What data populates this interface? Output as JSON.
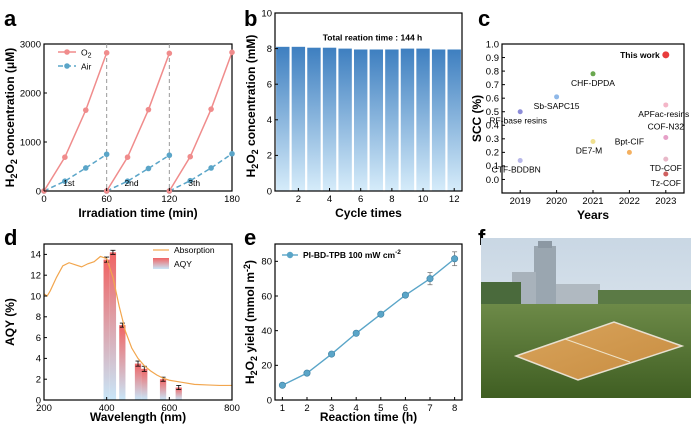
{
  "panels": {
    "a": "a",
    "b": "b",
    "c": "c",
    "d": "d",
    "e": "e",
    "f": "f"
  },
  "colors": {
    "o2": "#f08c8c",
    "air": "#5aa5c8",
    "bar_top": "#3e7fc0",
    "bar_bottom": "#d6ecfa",
    "absorption": "#f2a64e",
    "aqy_top": "#f06464",
    "aqy_bottom": "#c8e6f8",
    "scc_this_work": "#e83c3c"
  },
  "photo_description_label": "",
  "chart_data": [
    {
      "panel": "a",
      "type": "line",
      "xlabel": "Irradiation time (min)",
      "ylabel_parts": [
        "H",
        "2",
        "O",
        "2",
        " concentration (μM)"
      ],
      "xlim": [
        0,
        180
      ],
      "ylim": [
        0,
        3000
      ],
      "xticks": [
        0,
        60,
        120,
        180
      ],
      "yticks": [
        0,
        1000,
        2000,
        3000
      ],
      "cycle_dividers": [
        60,
        120
      ],
      "cycle_labels": [
        {
          "x": 20,
          "text": "1st"
        },
        {
          "x": 80,
          "text": "2nd"
        },
        {
          "x": 140,
          "text": "3th"
        }
      ],
      "legend_o2": [
        "O",
        "2"
      ],
      "series": [
        {
          "name": "Air",
          "key": "air",
          "dash": true,
          "segments": [
            [
              [
                0,
                0
              ],
              [
                20,
                200
              ],
              [
                40,
                470
              ],
              [
                60,
                750
              ]
            ],
            [
              [
                60,
                0
              ],
              [
                80,
                200
              ],
              [
                100,
                460
              ],
              [
                120,
                730
              ]
            ],
            [
              [
                120,
                0
              ],
              [
                140,
                210
              ],
              [
                160,
                470
              ],
              [
                180,
                760
              ]
            ]
          ]
        },
        {
          "name": "O2",
          "key": "o2",
          "dash": false,
          "segments": [
            [
              [
                0,
                0
              ],
              [
                20,
                690
              ],
              [
                40,
                1650
              ],
              [
                60,
                2820
              ]
            ],
            [
              [
                60,
                0
              ],
              [
                80,
                690
              ],
              [
                100,
                1660
              ],
              [
                120,
                2810
              ]
            ],
            [
              [
                120,
                0
              ],
              [
                140,
                700
              ],
              [
                160,
                1670
              ],
              [
                180,
                2830
              ]
            ]
          ]
        }
      ]
    },
    {
      "panel": "b",
      "type": "bar",
      "xlabel": "Cycle times",
      "ylabel_parts": [
        "H",
        "2",
        "O",
        "2",
        " concentration (mM)"
      ],
      "annotation": "Total reation time : 144 h",
      "xlim": [
        0.5,
        12.5
      ],
      "ylim": [
        0,
        10
      ],
      "xticks": [
        2,
        4,
        6,
        8,
        10,
        12
      ],
      "yticks": [
        0,
        2,
        4,
        6,
        8,
        10
      ],
      "categories": [
        1,
        2,
        3,
        4,
        5,
        6,
        7,
        8,
        9,
        10,
        11,
        12
      ],
      "values": [
        8.1,
        8.1,
        8.05,
        8.05,
        8.0,
        7.95,
        7.95,
        7.95,
        8.0,
        8.0,
        7.95,
        7.95
      ]
    },
    {
      "panel": "c",
      "type": "scatter",
      "xlabel": "Years",
      "ylabel": "SCC (%)",
      "xlim": [
        2018.5,
        2023.5
      ],
      "ylim": [
        -0.1,
        1.0
      ],
      "xticks": [
        2019,
        2020,
        2021,
        2022,
        2023
      ],
      "yticks": [
        0.0,
        0.1,
        0.2,
        0.3,
        0.4,
        0.5,
        0.6,
        0.7,
        0.8,
        0.9,
        1.0
      ],
      "points": [
        {
          "label": "This work",
          "x": 2023,
          "y": 0.92,
          "color": "#e83c3c",
          "r": 3.5,
          "bold": true,
          "anchor": "end",
          "dx": -6,
          "dy": 3
        },
        {
          "label": "CHF-DPDA",
          "x": 2021,
          "y": 0.78,
          "color": "#6aa84f",
          "r": 2.5,
          "bold": false,
          "anchor": "middle",
          "dx": 0,
          "dy": 12
        },
        {
          "label": "Sb-SAPC15",
          "x": 2020,
          "y": 0.61,
          "color": "#8fb8e8",
          "r": 2.5,
          "bold": false,
          "anchor": "middle",
          "dx": 0,
          "dy": 12
        },
        {
          "label": "APFac-resins",
          "x": 2023,
          "y": 0.55,
          "color": "#f4b6c8",
          "r": 2.5,
          "bold": false,
          "anchor": "middle",
          "dx": -2,
          "dy": 12
        },
        {
          "label": "RF-base resins",
          "x": 2019,
          "y": 0.5,
          "color": "#8c8cd8",
          "r": 2.5,
          "bold": false,
          "anchor": "middle",
          "dx": -2,
          "dy": 12
        },
        {
          "label": "COF-N32",
          "x": 2023,
          "y": 0.31,
          "color": "#e6a0c8",
          "r": 2.5,
          "bold": false,
          "anchor": "middle",
          "dx": 0,
          "dy": -8
        },
        {
          "label": "DE7-M",
          "x": 2021,
          "y": 0.28,
          "color": "#f0e090",
          "r": 2.5,
          "bold": false,
          "anchor": "middle",
          "dx": -4,
          "dy": 12
        },
        {
          "label": "Bpt-CIF",
          "x": 2022,
          "y": 0.2,
          "color": "#f4b060",
          "r": 2.5,
          "bold": false,
          "anchor": "middle",
          "dx": 0,
          "dy": -8
        },
        {
          "label": "TD-COF",
          "x": 2023,
          "y": 0.15,
          "color": "#e8b8c8",
          "r": 2.5,
          "bold": false,
          "anchor": "middle",
          "dx": 0,
          "dy": 12
        },
        {
          "label": "CTF-BDDBN",
          "x": 2019,
          "y": 0.14,
          "color": "#b8b8e8",
          "r": 2.5,
          "bold": false,
          "anchor": "middle",
          "dx": -4,
          "dy": 12
        },
        {
          "label": "Tz-COF",
          "x": 2023,
          "y": 0.04,
          "color": "#d06060",
          "r": 2.5,
          "bold": false,
          "anchor": "middle",
          "dx": 0,
          "dy": 12
        }
      ]
    },
    {
      "panel": "d",
      "type": "bar",
      "xlabel": "Wavelength (nm)",
      "ylabel": "AQY (%)",
      "legend": [
        "Absorption",
        "AQY"
      ],
      "xlim": [
        200,
        800
      ],
      "ylim": [
        0,
        15
      ],
      "xticks": [
        200,
        400,
        600,
        800
      ],
      "yticks": [
        0,
        2,
        4,
        6,
        8,
        10,
        12,
        14
      ],
      "bars": [
        {
          "x": 400,
          "value": 13.5,
          "err": 0.15
        },
        {
          "x": 420,
          "value": 14.2,
          "err": 0.1
        },
        {
          "x": 450,
          "value": 7.2,
          "err": 0.1
        },
        {
          "x": 500,
          "value": 3.5,
          "err": 0.15
        },
        {
          "x": 520,
          "value": 3.0,
          "err": 0.15
        },
        {
          "x": 580,
          "value": 2.0,
          "err": 0.1
        },
        {
          "x": 630,
          "value": 1.2,
          "err": 0.1
        }
      ],
      "bar_width": 20,
      "absorption": [
        [
          200,
          10.2
        ],
        [
          210,
          10.0
        ],
        [
          220,
          10.5
        ],
        [
          240,
          11.8
        ],
        [
          260,
          12.9
        ],
        [
          280,
          13.2
        ],
        [
          300,
          13.0
        ],
        [
          320,
          12.8
        ],
        [
          340,
          13.1
        ],
        [
          360,
          13.3
        ],
        [
          380,
          13.8
        ],
        [
          400,
          13.6
        ],
        [
          420,
          11.8
        ],
        [
          440,
          9.0
        ],
        [
          460,
          6.6
        ],
        [
          480,
          5.0
        ],
        [
          500,
          4.0
        ],
        [
          520,
          3.3
        ],
        [
          540,
          2.8
        ],
        [
          560,
          2.4
        ],
        [
          580,
          2.1
        ],
        [
          600,
          1.9
        ],
        [
          640,
          1.7
        ],
        [
          680,
          1.5
        ],
        [
          720,
          1.45
        ],
        [
          760,
          1.4
        ],
        [
          800,
          1.4
        ]
      ]
    },
    {
      "panel": "e",
      "type": "line",
      "xlabel": "Reaction time (h)",
      "ylabel_parts": [
        "H",
        "2",
        "O",
        "2",
        " yield (mmol m",
        "-2",
        ")"
      ],
      "legend": "PI-BD-TPB  100 mW cm",
      "legend_sup": "-2",
      "xlim": [
        0.7,
        8.3
      ],
      "ylim": [
        0,
        90
      ],
      "xticks": [
        1,
        2,
        3,
        4,
        5,
        6,
        7,
        8
      ],
      "yticks": [
        0,
        20,
        40,
        60,
        80
      ],
      "x": [
        1,
        2,
        3,
        4,
        5,
        6,
        7,
        8
      ],
      "y": [
        8.5,
        15.5,
        26.5,
        38.5,
        49.5,
        60.5,
        70.0,
        81.5
      ],
      "err": [
        0.8,
        0.8,
        1.0,
        1.0,
        1.0,
        1.0,
        3.5,
        4.0
      ]
    }
  ]
}
